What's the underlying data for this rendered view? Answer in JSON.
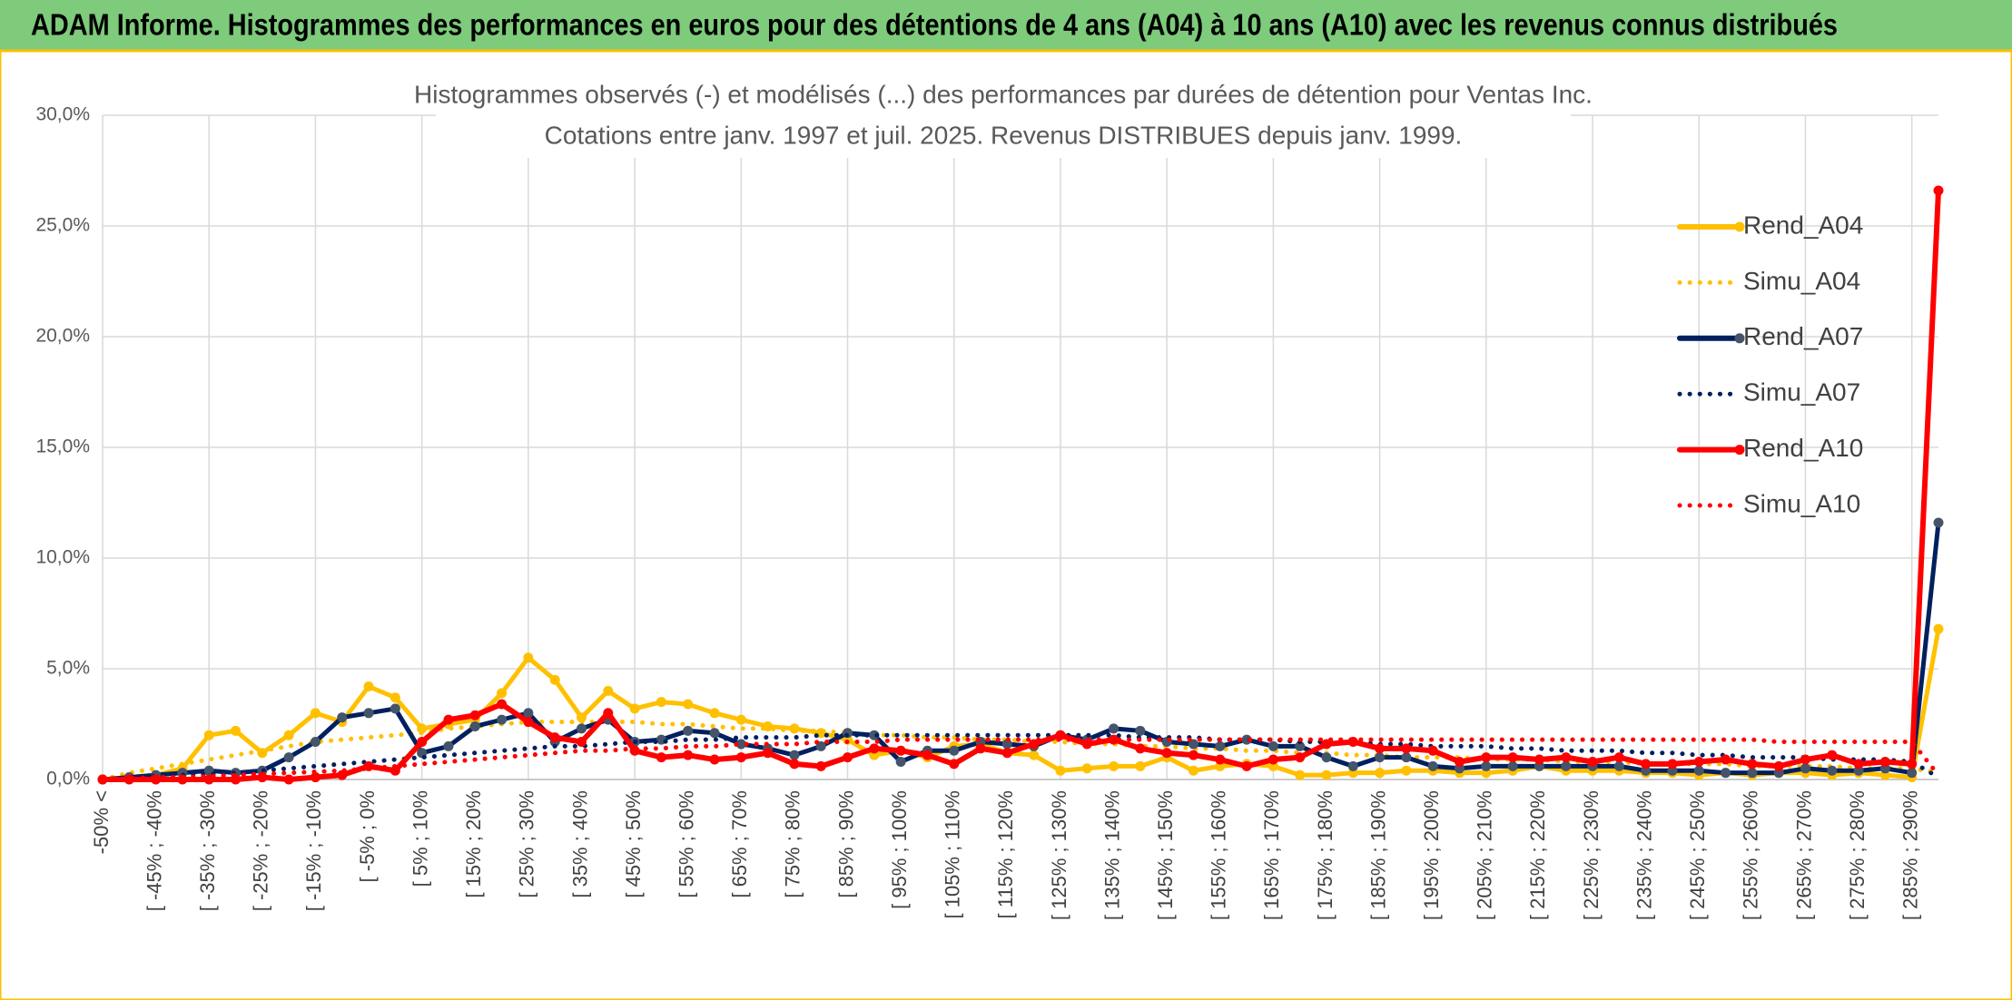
{
  "header": "ADAM Informe. Histogrammes des performances en euros pour des détentions de 4 ans (A04) à 10 ans (A10) avec les revenus connus distribués",
  "chart_data": {
    "type": "line",
    "title": "Histogrammes observés (-) et modélisés (...) des performances par durées de détention pour Ventas Inc.",
    "subtitle": "Cotations entre janv. 1997 et juil. 2025. Revenus DISTRIBUES depuis janv. 1999.",
    "categories": [
      "-50% <",
      null,
      "[ -45% ; -40%",
      null,
      "[ -35% ; -30%",
      null,
      "[ -25% ; -20%",
      null,
      "[ -15% ; -10%",
      null,
      "[ -5% ; 0%",
      null,
      "[ 5% ; 10%",
      null,
      "[ 15% ; 20%",
      null,
      "[ 25% ; 30%",
      null,
      "[ 35% ; 40%",
      null,
      "[ 45% ; 50%",
      null,
      "[ 55% ; 60%",
      null,
      "[ 65% ; 70%",
      null,
      "[ 75% ; 80%",
      null,
      "[ 85% ; 90%",
      null,
      "[ 95% ; 100%",
      null,
      "[ 105% ; 110%",
      null,
      "[ 115% ; 120%",
      null,
      "[ 125% ; 130%",
      null,
      "[ 135% ; 140%",
      null,
      "[ 145% ; 150%",
      null,
      "[ 155% ; 160%",
      null,
      "[ 165% ; 170%",
      null,
      "[ 175% ; 180%",
      null,
      "[ 185% ; 190%",
      null,
      "[ 195% ; 200%",
      null,
      "[ 205% ; 210%",
      null,
      "[ 215% ; 220%",
      null,
      "[ 225% ; 230%",
      null,
      "[ 235% ; 240%",
      null,
      "[ 245% ; 250%",
      null,
      "[ 255% ; 260%",
      null,
      "[ 265% ; 270%",
      null,
      "[ 275% ; 280%",
      null,
      "[ 285% ; 290%",
      null
    ],
    "series": [
      {
        "name": "Rend_A04",
        "color": "#FFC000",
        "style": "solid",
        "values": [
          0,
          0.1,
          0.2,
          0.5,
          2.0,
          2.2,
          1.2,
          2.0,
          3.0,
          2.6,
          4.2,
          3.7,
          2.3,
          2.5,
          2.7,
          3.9,
          5.5,
          4.5,
          2.8,
          4.0,
          3.2,
          3.5,
          3.4,
          3.0,
          2.7,
          2.4,
          2.3,
          2.1,
          1.8,
          1.1,
          1.3,
          1.0,
          1.5,
          1.6,
          1.2,
          1.1,
          0.4,
          0.5,
          0.6,
          0.6,
          1.0,
          0.4,
          0.6,
          0.7,
          0.6,
          0.2,
          0.2,
          0.3,
          0.3,
          0.4,
          0.4,
          0.3,
          0.3,
          0.4,
          0.6,
          0.4,
          0.4,
          0.4,
          0.3,
          0.3,
          0.2,
          0.3,
          0.2,
          0.3,
          0.3,
          0.2,
          0.3,
          0.2,
          0.1,
          6.8
        ]
      },
      {
        "name": "Simu_A04",
        "color": "#FFC000",
        "style": "dotted",
        "values": [
          0,
          0.3,
          0.5,
          0.7,
          0.9,
          1.1,
          1.3,
          1.5,
          1.7,
          1.8,
          1.9,
          2.0,
          2.1,
          2.3,
          2.4,
          2.5,
          2.6,
          2.6,
          2.6,
          2.6,
          2.6,
          2.5,
          2.5,
          2.4,
          2.3,
          2.3,
          2.2,
          2.2,
          2.1,
          2.0,
          2.0,
          1.9,
          1.9,
          1.8,
          1.8,
          1.7,
          1.7,
          1.6,
          1.6,
          1.5,
          1.5,
          1.4,
          1.4,
          1.3,
          1.3,
          1.2,
          1.2,
          1.1,
          1.1,
          1.0,
          1.0,
          1.0,
          0.9,
          0.9,
          0.9,
          0.8,
          0.8,
          0.8,
          0.7,
          0.7,
          0.7,
          0.7,
          0.6,
          0.6,
          0.6,
          0.6,
          0.5,
          0.5,
          0.5,
          0.3
        ]
      },
      {
        "name": "Rend_A07",
        "color": "#002060",
        "marker_color": "#44546A",
        "style": "solid",
        "values": [
          0,
          0.1,
          0.2,
          0.3,
          0.4,
          0.3,
          0.4,
          1.0,
          1.7,
          2.8,
          3.0,
          3.2,
          1.2,
          1.5,
          2.4,
          2.7,
          3.0,
          1.7,
          2.3,
          2.7,
          1.7,
          1.8,
          2.2,
          2.1,
          1.6,
          1.4,
          1.1,
          1.5,
          2.1,
          2.0,
          0.8,
          1.3,
          1.3,
          1.7,
          1.6,
          1.5,
          2.0,
          1.8,
          2.3,
          2.2,
          1.7,
          1.6,
          1.5,
          1.8,
          1.5,
          1.5,
          1.0,
          0.6,
          1.0,
          1.0,
          0.6,
          0.5,
          0.6,
          0.6,
          0.6,
          0.6,
          0.6,
          0.6,
          0.4,
          0.4,
          0.4,
          0.3,
          0.3,
          0.3,
          0.5,
          0.4,
          0.4,
          0.5,
          0.3,
          11.6
        ]
      },
      {
        "name": "Simu_A07",
        "color": "#002060",
        "style": "dotted",
        "values": [
          0,
          0.1,
          0.15,
          0.2,
          0.25,
          0.3,
          0.4,
          0.5,
          0.6,
          0.7,
          0.8,
          0.9,
          1.0,
          1.1,
          1.2,
          1.3,
          1.4,
          1.5,
          1.5,
          1.6,
          1.7,
          1.7,
          1.8,
          1.8,
          1.9,
          1.9,
          1.9,
          2.0,
          2.0,
          2.0,
          2.0,
          2.0,
          2.0,
          2.0,
          2.0,
          2.0,
          2.0,
          2.0,
          2.0,
          1.9,
          1.9,
          1.9,
          1.8,
          1.8,
          1.8,
          1.7,
          1.7,
          1.7,
          1.6,
          1.6,
          1.5,
          1.5,
          1.5,
          1.4,
          1.4,
          1.3,
          1.3,
          1.3,
          1.2,
          1.2,
          1.1,
          1.1,
          1.0,
          1.0,
          1.0,
          0.9,
          0.9,
          0.9,
          0.8,
          0.1
        ]
      },
      {
        "name": "Rend_A10",
        "color": "#FF0000",
        "style": "solid",
        "values": [
          0,
          0,
          0,
          0,
          0,
          0,
          0.1,
          0,
          0.1,
          0.2,
          0.6,
          0.4,
          1.7,
          2.7,
          2.9,
          3.4,
          2.6,
          1.9,
          1.7,
          3.0,
          1.3,
          1.0,
          1.1,
          0.9,
          1.0,
          1.2,
          0.7,
          0.6,
          1.0,
          1.4,
          1.3,
          1.1,
          0.7,
          1.4,
          1.2,
          1.6,
          2.0,
          1.6,
          1.8,
          1.4,
          1.2,
          1.1,
          0.9,
          0.6,
          0.9,
          1.0,
          1.6,
          1.7,
          1.4,
          1.4,
          1.3,
          0.8,
          1.0,
          1.0,
          0.9,
          1.0,
          0.8,
          1.0,
          0.7,
          0.7,
          0.8,
          0.9,
          0.7,
          0.6,
          0.9,
          1.1,
          0.7,
          0.8,
          0.7,
          26.6
        ]
      },
      {
        "name": "Simu_A10",
        "color": "#FF0000",
        "style": "dotted",
        "values": [
          0,
          0.05,
          0.1,
          0.1,
          0.15,
          0.2,
          0.25,
          0.3,
          0.35,
          0.4,
          0.5,
          0.6,
          0.7,
          0.8,
          0.9,
          1.0,
          1.1,
          1.2,
          1.3,
          1.3,
          1.4,
          1.4,
          1.5,
          1.5,
          1.6,
          1.6,
          1.6,
          1.7,
          1.7,
          1.7,
          1.8,
          1.8,
          1.8,
          1.8,
          1.8,
          1.8,
          1.8,
          1.8,
          1.8,
          1.8,
          1.8,
          1.8,
          1.8,
          1.8,
          1.8,
          1.8,
          1.8,
          1.8,
          1.8,
          1.8,
          1.8,
          1.8,
          1.8,
          1.8,
          1.8,
          1.8,
          1.8,
          1.8,
          1.8,
          1.8,
          1.8,
          1.8,
          1.8,
          1.7,
          1.7,
          1.7,
          1.7,
          1.7,
          1.7,
          0.2
        ]
      }
    ],
    "ylim": [
      0,
      30
    ],
    "yticks": [
      {
        "value": 0,
        "label": "0,0%"
      },
      {
        "value": 5,
        "label": "5,0%"
      },
      {
        "value": 10,
        "label": "10,0%"
      },
      {
        "value": 15,
        "label": "15,0%"
      },
      {
        "value": 20,
        "label": "20,0%"
      },
      {
        "value": 25,
        "label": "25,0%"
      },
      {
        "value": 30,
        "label": "30,0%"
      }
    ],
    "grid": true,
    "legend": "right"
  }
}
